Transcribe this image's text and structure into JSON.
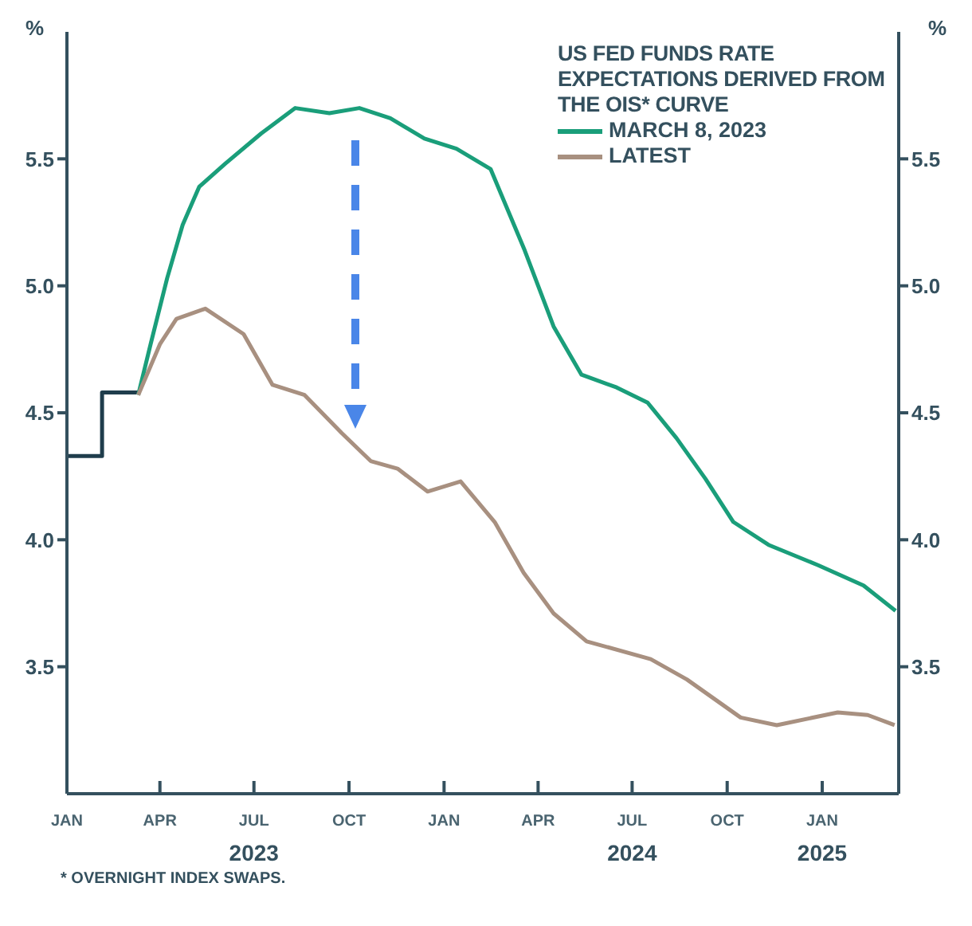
{
  "chart_data": {
    "type": "line",
    "title": "US FED FUNDS RATE EXPECTATIONS DERIVED FROM THE OIS* CURVE",
    "ylabel": "%",
    "y2label": "%",
    "annotations": [
      "* OVERNIGHT INDEX SWAPS."
    ],
    "xlim": [
      "2023-01-01",
      "2025-03-16"
    ],
    "xticks": [
      {
        "value": "2023-01",
        "label": "JAN"
      },
      {
        "value": "2023-04",
        "label": "APR"
      },
      {
        "value": "2023-07",
        "label": "JUL\n2023"
      },
      {
        "value": "2023-10",
        "label": "OCT"
      },
      {
        "value": "2024-01",
        "label": "JAN"
      },
      {
        "value": "2024-04",
        "label": "APR"
      },
      {
        "value": "2024-07",
        "label": "JUL\n2024"
      },
      {
        "value": "2024-10",
        "label": "OCT"
      },
      {
        "value": "2025-01",
        "label": "JAN\n2025"
      }
    ],
    "ylim": [
      3.0,
      6.0
    ],
    "yticks": [
      {
        "value": 3.5,
        "label": "3.5"
      },
      {
        "value": 4.0,
        "label": "4.0"
      },
      {
        "value": 4.5,
        "label": "4.5"
      },
      {
        "value": 5.0,
        "label": "5.0"
      },
      {
        "value": 5.5,
        "label": "5.5"
      }
    ],
    "y2lim": [
      3.0,
      6.0
    ],
    "y2ticks": [
      {
        "value": 3.5,
        "label": "3.5"
      },
      {
        "value": 4.0,
        "label": "4.0"
      },
      {
        "value": 4.5,
        "label": "4.5"
      },
      {
        "value": 5.0,
        "label": "5.0"
      },
      {
        "value": 5.5,
        "label": "5.5"
      }
    ],
    "grid": false,
    "legend": "top right",
    "marker": "none",
    "line_style": "solid",
    "series": [
      {
        "type": "step",
        "color": "#1f3d4c",
        "x": [
          "2023-01-01",
          "2023-02-04",
          "2023-03-11"
        ],
        "values": [
          4.33,
          4.58,
          4.58
        ]
      },
      {
        "name": "MARCH 8, 2023",
        "color": "#1a9e7a",
        "x": [
          "2023-03-11",
          "2023-03-23",
          "2023-04-08",
          "2023-04-23",
          "2023-05-09",
          "2023-06-03",
          "2023-07-08",
          "2023-08-10",
          "2023-09-12",
          "2023-10-11",
          "2023-11-10",
          "2023-12-13",
          "2024-01-13",
          "2024-02-15",
          "2024-03-19",
          "2024-04-16",
          "2024-05-13",
          "2024-06-16",
          "2024-07-16",
          "2024-08-13",
          "2024-09-10",
          "2024-10-07",
          "2024-11-10",
          "2024-12-28",
          "2025-02-10",
          "2025-03-13"
        ],
        "values": [
          4.57,
          4.77,
          5.03,
          5.24,
          5.39,
          5.48,
          5.6,
          5.7,
          5.68,
          5.7,
          5.66,
          5.58,
          5.54,
          5.46,
          5.14,
          4.84,
          4.65,
          4.6,
          4.54,
          4.4,
          4.24,
          4.07,
          3.98,
          3.9,
          3.82,
          3.72
        ]
      },
      {
        "name": "LATEST",
        "color": "#a89080",
        "x": [
          "2023-03-11",
          "2023-04-01",
          "2023-04-17",
          "2023-05-15",
          "2023-06-21",
          "2023-07-19",
          "2023-08-19",
          "2023-09-24",
          "2023-10-22",
          "2023-11-17",
          "2023-12-16",
          "2024-01-17",
          "2024-02-19",
          "2024-03-18",
          "2024-04-16",
          "2024-05-18",
          "2024-07-19",
          "2024-08-23",
          "2024-10-14",
          "2024-11-18",
          "2025-01-16",
          "2025-02-14",
          "2025-03-12"
        ],
        "values": [
          4.57,
          4.77,
          4.87,
          4.91,
          4.81,
          4.61,
          4.57,
          4.42,
          4.31,
          4.28,
          4.19,
          4.23,
          4.07,
          3.87,
          3.71,
          3.6,
          3.53,
          3.45,
          3.3,
          3.27,
          3.32,
          3.31,
          3.27
        ]
      }
    ]
  }
}
